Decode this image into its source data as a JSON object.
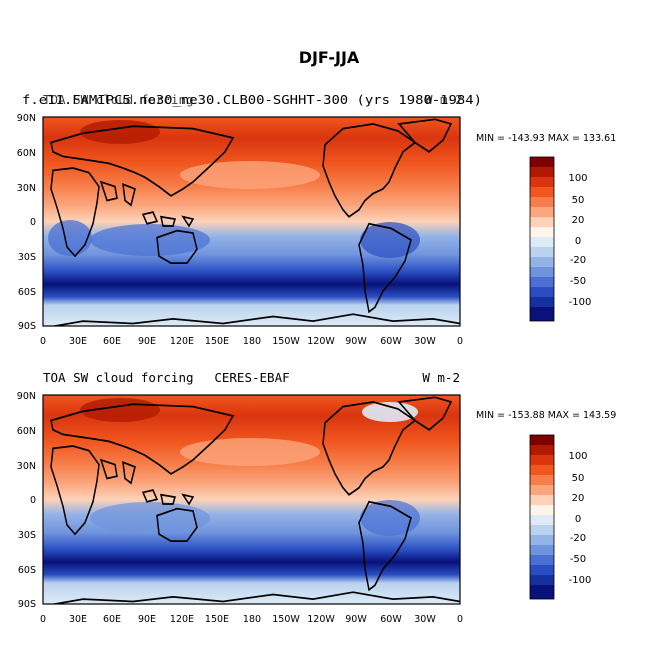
{
  "page_title": "DJF-JJA",
  "panels": [
    {
      "id": "model",
      "left_title": "TOA SW cloud forcing",
      "center_title": "f.e11.FAMIPC5.ne30_ne30.CLB00-SGHHT-300 (yrs 1980-1984)",
      "right_title": "W m-2",
      "overlap_title": "f.e11.FAMIPC5.f09_f09.CLB00-SGHHT-300 (yrs 1980-1984)",
      "stats": "MIN = -143.93  MAX = 133.61",
      "min": -143.93,
      "max": 133.61
    },
    {
      "id": "obs",
      "left_title": "TOA SW cloud forcing",
      "center_title": "CERES-EBAF",
      "right_title": "W m-2",
      "stats": "MIN = -153.88  MAX = 143.59",
      "min": -153.88,
      "max": 143.59
    }
  ],
  "lat_ticks": [
    "90N",
    "60N",
    "30N",
    "0",
    "30S",
    "60S",
    "90S"
  ],
  "lon_ticks": [
    "0",
    "30E",
    "60E",
    "90E",
    "120E",
    "150E",
    "180",
    "150W",
    "120W",
    "90W",
    "60W",
    "30W",
    "0"
  ],
  "colorbar": {
    "labels": [
      "100",
      "50",
      "20",
      "0",
      "-20",
      "-50",
      "-100"
    ],
    "colors": [
      "#7f0000",
      "#b21a00",
      "#d9350f",
      "#f0561e",
      "#f77e4a",
      "#fba57c",
      "#fdd2b8",
      "#fff5ea",
      "#deebf7",
      "#b9d2ee",
      "#95b4e6",
      "#6f93dd",
      "#4a70d4",
      "#2a4ec2",
      "#1531a0",
      "#08127a"
    ]
  },
  "chart_data": [
    {
      "type": "heatmap",
      "title": "DJF-JJA",
      "subtitle": "TOA SW cloud forcing — model (yrs 1980-1984)",
      "units": "W m-2",
      "x_range": [
        0,
        360
      ],
      "y_range": [
        -90,
        90
      ],
      "contour_levels": [
        -120,
        -100,
        -80,
        -60,
        -50,
        -40,
        -30,
        -20,
        -10,
        0,
        10,
        20,
        30,
        40,
        50,
        60,
        80,
        100,
        120
      ],
      "min": -143.93,
      "max": 133.61
    },
    {
      "type": "heatmap",
      "title": "DJF-JJA",
      "subtitle": "TOA SW cloud forcing — CERES-EBAF",
      "units": "W m-2",
      "x_range": [
        0,
        360
      ],
      "y_range": [
        -90,
        90
      ],
      "contour_levels": [
        -120,
        -100,
        -80,
        -60,
        -50,
        -40,
        -30,
        -20,
        -10,
        0,
        10,
        20,
        30,
        40,
        50,
        60,
        80,
        100,
        120
      ],
      "min": -153.88,
      "max": 143.59
    }
  ]
}
